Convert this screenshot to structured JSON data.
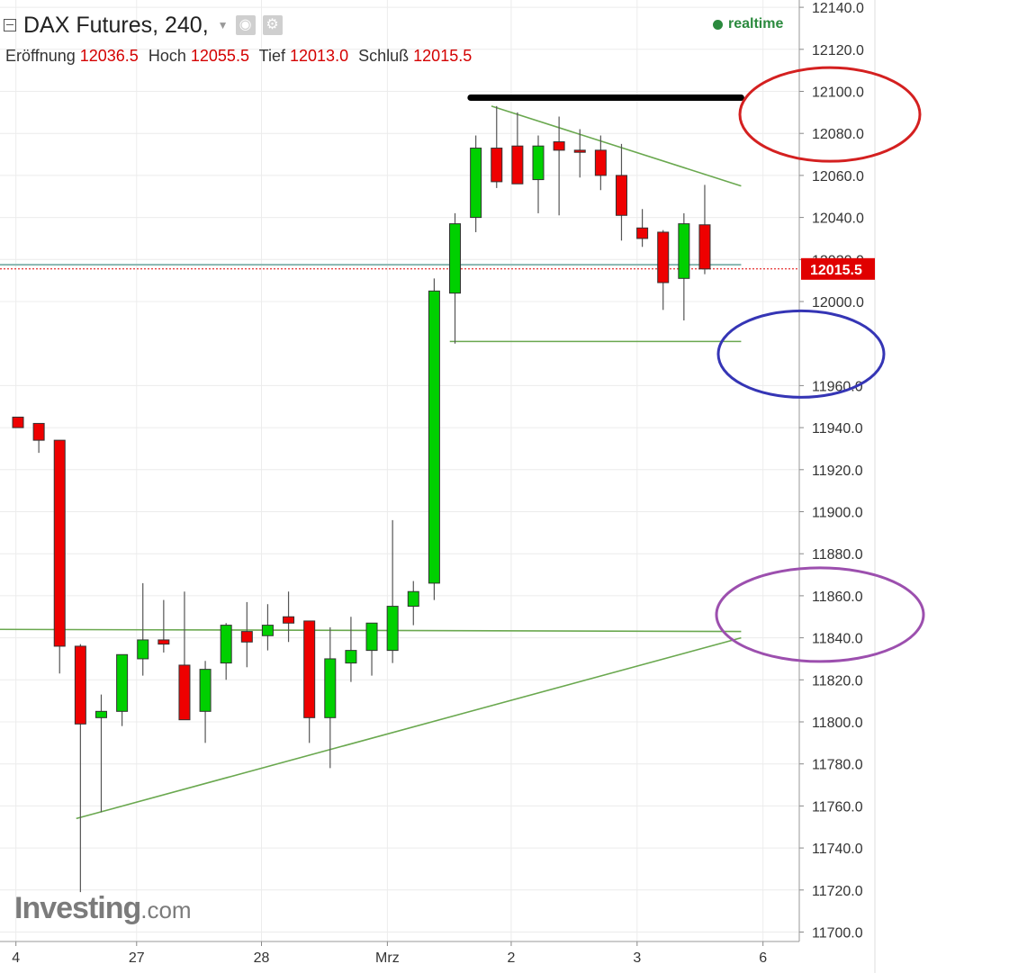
{
  "header": {
    "title": "DAX Futures, 240,",
    "ohlc": [
      {
        "label": "Eröffnung",
        "value": "12036.5"
      },
      {
        "label": "Hoch",
        "value": "12055.5"
      },
      {
        "label": "Tief",
        "value": "12013.0"
      },
      {
        "label": "Schluß",
        "value": "12015.5"
      }
    ],
    "status": "realtime"
  },
  "logo": {
    "brand": "Investing",
    "suffix": ".com"
  },
  "colors": {
    "up": "#00d000",
    "down": "#ee0000",
    "trendline": "#6aa84f",
    "horizontal_line": "#86b6b0",
    "resistance": "#000000",
    "circle_red": "#d42020",
    "circle_blue": "#3535b5",
    "circle_purple": "#9c4fae"
  },
  "chart_data": {
    "type": "candlestick",
    "title": "DAX Futures, 240,",
    "ylim": [
      11690,
      12145
    ],
    "y_ticks": [
      "12140.0",
      "12120.0",
      "12100.0",
      "12080.0",
      "12060.0",
      "12040.0",
      "12020.0",
      "12000.0",
      "11960.0",
      "11940.0",
      "11920.0",
      "11900.0",
      "11880.0",
      "11860.0",
      "11840.0",
      "11820.0",
      "11800.0",
      "11780.0",
      "11760.0",
      "11740.0",
      "11720.0",
      "11700.0"
    ],
    "x_tick_labels": [
      {
        "label": "4",
        "index": -0.1
      },
      {
        "label": "27",
        "index": 5.7
      },
      {
        "label": "28",
        "index": 11.7
      },
      {
        "label": "Mrz",
        "index": 17.75
      },
      {
        "label": "2",
        "index": 23.7
      },
      {
        "label": "3",
        "index": 29.75
      },
      {
        "label": "6",
        "index": 35.8
      }
    ],
    "current_price": "12015.5",
    "candles": [
      {
        "i": 0,
        "o": 11945,
        "h": 11945,
        "l": 11940,
        "c": 11940
      },
      {
        "i": 1,
        "o": 11942,
        "h": 11942,
        "l": 11928,
        "c": 11934
      },
      {
        "i": 2,
        "o": 11934,
        "h": 11934,
        "l": 11823,
        "c": 11836
      },
      {
        "i": 3,
        "o": 11836,
        "h": 11837,
        "l": 11719,
        "c": 11799
      },
      {
        "i": 4,
        "o": 11802,
        "h": 11813,
        "l": 11757,
        "c": 11805
      },
      {
        "i": 5,
        "o": 11805,
        "h": 11832,
        "l": 11798,
        "c": 11832
      },
      {
        "i": 6,
        "o": 11830,
        "h": 11866,
        "l": 11822,
        "c": 11839
      },
      {
        "i": 7,
        "o": 11839,
        "h": 11858,
        "l": 11833,
        "c": 11837
      },
      {
        "i": 8,
        "o": 11827,
        "h": 11862,
        "l": 11802,
        "c": 11801
      },
      {
        "i": 9,
        "o": 11805,
        "h": 11829,
        "l": 11790,
        "c": 11825
      },
      {
        "i": 10,
        "o": 11828,
        "h": 11847,
        "l": 11820,
        "c": 11846
      },
      {
        "i": 11,
        "o": 11843,
        "h": 11857,
        "l": 11826,
        "c": 11838
      },
      {
        "i": 12,
        "o": 11841,
        "h": 11856,
        "l": 11834,
        "c": 11846
      },
      {
        "i": 13,
        "o": 11850,
        "h": 11862,
        "l": 11838,
        "c": 11847
      },
      {
        "i": 14,
        "o": 11848,
        "h": 11848,
        "l": 11790,
        "c": 11802
      },
      {
        "i": 15,
        "o": 11802,
        "h": 11845,
        "l": 11778,
        "c": 11830
      },
      {
        "i": 16,
        "o": 11828,
        "h": 11850,
        "l": 11819,
        "c": 11834
      },
      {
        "i": 17,
        "o": 11834,
        "h": 11847,
        "l": 11822,
        "c": 11847
      },
      {
        "i": 18,
        "o": 11834,
        "h": 11896,
        "l": 11828,
        "c": 11855
      },
      {
        "i": 19,
        "o": 11855,
        "h": 11867,
        "l": 11846,
        "c": 11862
      },
      {
        "i": 20,
        "o": 11866,
        "h": 12011,
        "l": 11858,
        "c": 12005
      },
      {
        "i": 21,
        "o": 12004,
        "h": 12042,
        "l": 11980,
        "c": 12037
      },
      {
        "i": 22,
        "o": 12040,
        "h": 12079,
        "l": 12033,
        "c": 12073
      },
      {
        "i": 23,
        "o": 12073,
        "h": 12093,
        "l": 12054,
        "c": 12057
      },
      {
        "i": 24,
        "o": 12074,
        "h": 12090,
        "l": 12056,
        "c": 12056
      },
      {
        "i": 25,
        "o": 12058,
        "h": 12079,
        "l": 12042,
        "c": 12074
      },
      {
        "i": 26,
        "o": 12076,
        "h": 12088,
        "l": 12041,
        "c": 12072
      },
      {
        "i": 27,
        "o": 12072,
        "h": 12082,
        "l": 12059,
        "c": 12071
      },
      {
        "i": 28,
        "o": 12072,
        "h": 12079,
        "l": 12053,
        "c": 12060
      },
      {
        "i": 29,
        "o": 12060,
        "h": 12075,
        "l": 12029,
        "c": 12041
      },
      {
        "i": 30,
        "o": 12035,
        "h": 12044,
        "l": 12026,
        "c": 12030
      },
      {
        "i": 31,
        "o": 12033,
        "h": 12034,
        "l": 11996,
        "c": 12009
      },
      {
        "i": 32,
        "o": 12011,
        "h": 12042,
        "l": 11991,
        "c": 12037
      },
      {
        "i": 33,
        "o": 12036.5,
        "h": 12055.5,
        "l": 12013,
        "c": 12015.5
      }
    ],
    "drawings": {
      "resistance_line": {
        "x1": 21.75,
        "x2": 34.75,
        "y": 12097
      },
      "falling_trendline": {
        "x1": 22.75,
        "y1": 12093,
        "x2": 34.75,
        "y2": 12055
      },
      "support_line_high": {
        "x1": 20.75,
        "x2": 34.75,
        "y": 11981
      },
      "horizontal_line_teal": {
        "y": 12017.5
      },
      "support_line_low": {
        "y1": 11844,
        "y2": 11843
      },
      "rising_trendline": {
        "x1": 2.8,
        "y1": 11754,
        "x2": 34.75,
        "y2": 11840
      }
    }
  }
}
